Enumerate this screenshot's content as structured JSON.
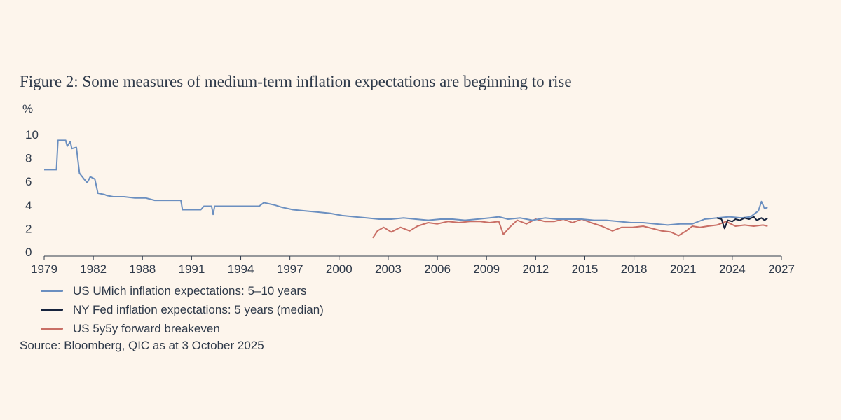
{
  "chart_data": {
    "type": "line",
    "title": "Figure 2: Some measures of medium-term inflation expectations are beginning to rise",
    "ylabel": "%",
    "ylim": [
      0,
      10
    ],
    "yticks": [
      "0",
      "2",
      "4",
      "6",
      "8",
      "10"
    ],
    "xlim": [
      1979,
      2027
    ],
    "xticks": [
      "1979",
      "1982",
      "1988",
      "1991",
      "1994",
      "1997",
      "2000",
      "2003",
      "2006",
      "2009",
      "2012",
      "2015",
      "2018",
      "2021",
      "2024",
      "2027"
    ],
    "grid": false,
    "series": [
      {
        "name": "US UMich inflation expectations: 5–10 years",
        "color": "#6b8fc0",
        "points": [
          [
            1979.0,
            7.0
          ],
          [
            1979.8,
            7.0
          ],
          [
            1979.9,
            9.5
          ],
          [
            1980.4,
            9.5
          ],
          [
            1980.5,
            9.0
          ],
          [
            1980.7,
            9.4
          ],
          [
            1980.8,
            8.8
          ],
          [
            1981.1,
            8.9
          ],
          [
            1981.3,
            6.7
          ],
          [
            1981.6,
            6.2
          ],
          [
            1981.8,
            5.9
          ],
          [
            1982.0,
            6.4
          ],
          [
            1982.3,
            6.2
          ],
          [
            1982.5,
            5.0
          ],
          [
            1982.9,
            4.9
          ],
          [
            1983.1,
            4.8
          ],
          [
            1983.5,
            4.7
          ],
          [
            1984.2,
            4.7
          ],
          [
            1984.9,
            4.6
          ],
          [
            1985.6,
            4.6
          ],
          [
            1986.2,
            4.4
          ],
          [
            1986.9,
            4.4
          ],
          [
            1987.5,
            4.4
          ],
          [
            1987.9,
            4.4
          ],
          [
            1988.0,
            3.6
          ],
          [
            1988.8,
            3.6
          ],
          [
            1989.2,
            3.6
          ],
          [
            1989.4,
            3.9
          ],
          [
            1989.9,
            3.9
          ],
          [
            1990.0,
            3.2
          ],
          [
            1990.1,
            3.9
          ],
          [
            1991.0,
            3.9
          ],
          [
            1992.0,
            3.9
          ],
          [
            1993.0,
            3.9
          ],
          [
            1993.3,
            4.2
          ],
          [
            1994.0,
            4.0
          ],
          [
            1994.5,
            3.8
          ],
          [
            1995.2,
            3.6
          ],
          [
            1996.0,
            3.5
          ],
          [
            1996.8,
            3.4
          ],
          [
            1997.6,
            3.3
          ],
          [
            1998.4,
            3.1
          ],
          [
            1999.2,
            3.0
          ],
          [
            2000.0,
            2.9
          ],
          [
            2000.8,
            2.8
          ],
          [
            2001.6,
            2.8
          ],
          [
            2002.4,
            2.9
          ],
          [
            2003.2,
            2.8
          ],
          [
            2004.0,
            2.7
          ],
          [
            2004.8,
            2.8
          ],
          [
            2005.6,
            2.8
          ],
          [
            2006.4,
            2.7
          ],
          [
            2007.2,
            2.8
          ],
          [
            2008.0,
            2.9
          ],
          [
            2008.6,
            3.0
          ],
          [
            2009.2,
            2.8
          ],
          [
            2010.0,
            2.9
          ],
          [
            2010.8,
            2.7
          ],
          [
            2011.6,
            2.9
          ],
          [
            2012.4,
            2.8
          ],
          [
            2013.2,
            2.8
          ],
          [
            2014.0,
            2.8
          ],
          [
            2014.8,
            2.7
          ],
          [
            2015.6,
            2.7
          ],
          [
            2016.4,
            2.6
          ],
          [
            2017.2,
            2.5
          ],
          [
            2018.0,
            2.5
          ],
          [
            2018.8,
            2.4
          ],
          [
            2019.6,
            2.3
          ],
          [
            2020.4,
            2.4
          ],
          [
            2021.2,
            2.4
          ],
          [
            2022.0,
            2.8
          ],
          [
            2022.8,
            2.9
          ],
          [
            2023.6,
            3.0
          ],
          [
            2024.4,
            2.9
          ],
          [
            2025.0,
            3.0
          ],
          [
            2025.5,
            3.5
          ],
          [
            2025.7,
            4.3
          ],
          [
            2025.9,
            3.7
          ],
          [
            2026.1,
            3.8
          ]
        ]
      },
      {
        "name": "NY Fed inflation expectations: 5 years (median)",
        "color": "#16233d",
        "points": [
          [
            2022.8,
            2.9
          ],
          [
            2023.1,
            2.8
          ],
          [
            2023.3,
            2.0
          ],
          [
            2023.5,
            2.7
          ],
          [
            2023.8,
            2.6
          ],
          [
            2024.0,
            2.8
          ],
          [
            2024.3,
            2.7
          ],
          [
            2024.6,
            2.9
          ],
          [
            2024.9,
            2.8
          ],
          [
            2025.2,
            3.0
          ],
          [
            2025.4,
            2.7
          ],
          [
            2025.7,
            2.9
          ],
          [
            2025.9,
            2.7
          ],
          [
            2026.1,
            2.9
          ]
        ]
      },
      {
        "name": "US 5y5y forward breakeven",
        "color": "#c96f66",
        "points": [
          [
            2000.4,
            1.2
          ],
          [
            2000.7,
            1.8
          ],
          [
            2001.1,
            2.1
          ],
          [
            2001.6,
            1.7
          ],
          [
            2002.2,
            2.1
          ],
          [
            2002.8,
            1.8
          ],
          [
            2003.3,
            2.2
          ],
          [
            2004.0,
            2.5
          ],
          [
            2004.6,
            2.4
          ],
          [
            2005.3,
            2.6
          ],
          [
            2006.0,
            2.5
          ],
          [
            2006.7,
            2.6
          ],
          [
            2007.4,
            2.6
          ],
          [
            2008.0,
            2.5
          ],
          [
            2008.6,
            2.6
          ],
          [
            2008.9,
            1.5
          ],
          [
            2009.3,
            2.1
          ],
          [
            2009.8,
            2.7
          ],
          [
            2010.4,
            2.4
          ],
          [
            2011.0,
            2.8
          ],
          [
            2011.6,
            2.6
          ],
          [
            2012.2,
            2.6
          ],
          [
            2012.8,
            2.8
          ],
          [
            2013.4,
            2.5
          ],
          [
            2014.0,
            2.8
          ],
          [
            2014.6,
            2.5
          ],
          [
            2015.3,
            2.2
          ],
          [
            2016.0,
            1.8
          ],
          [
            2016.6,
            2.1
          ],
          [
            2017.3,
            2.1
          ],
          [
            2018.0,
            2.2
          ],
          [
            2018.6,
            2.0
          ],
          [
            2019.2,
            1.8
          ],
          [
            2019.8,
            1.7
          ],
          [
            2020.3,
            1.4
          ],
          [
            2020.8,
            1.8
          ],
          [
            2021.2,
            2.2
          ],
          [
            2021.7,
            2.1
          ],
          [
            2022.2,
            2.2
          ],
          [
            2022.8,
            2.3
          ],
          [
            2023.4,
            2.6
          ],
          [
            2024.0,
            2.2
          ],
          [
            2024.6,
            2.3
          ],
          [
            2025.2,
            2.2
          ],
          [
            2025.8,
            2.3
          ],
          [
            2026.1,
            2.2
          ]
        ]
      }
    ]
  },
  "source": "Source: Bloomberg, QIC as at 3 October 2025"
}
